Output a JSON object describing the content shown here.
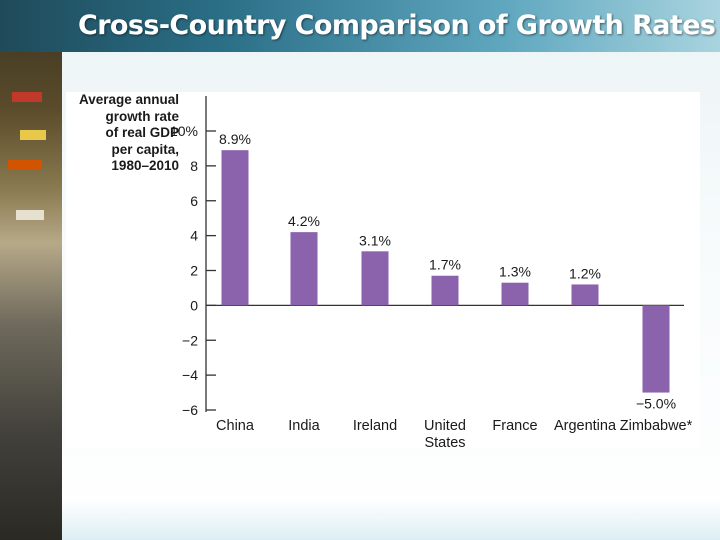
{
  "slide": {
    "title": "Cross-Country Comparison of Growth Rates"
  },
  "colors": {
    "bar": "#8b63ad",
    "axis": "#333333",
    "text": "#1a1a1a"
  },
  "chart_data": {
    "type": "bar",
    "title": "",
    "ylabel": "Average annual\ngrowth rate\nof real GDP\nper capita,\n1980–2010",
    "xlabel": "",
    "categories": [
      "China",
      "India",
      "Ireland",
      "United\nStates",
      "France",
      "Argentina",
      "Zimbabwe*"
    ],
    "values": [
      8.9,
      4.2,
      3.1,
      1.7,
      1.3,
      1.2,
      -5.0
    ],
    "data_labels": [
      "8.9%",
      "4.2%",
      "3.1%",
      "1.7%",
      "1.3%",
      "1.2%",
      "−5.0%"
    ],
    "ylim": [
      -6,
      10
    ],
    "yticks": [
      -6,
      -4,
      -2,
      0,
      2,
      4,
      6,
      8,
      10
    ],
    "ytick_labels": [
      "−6",
      "−4",
      "−2",
      "0",
      "2",
      "4",
      "6",
      "8",
      "10%"
    ],
    "grid": false
  }
}
